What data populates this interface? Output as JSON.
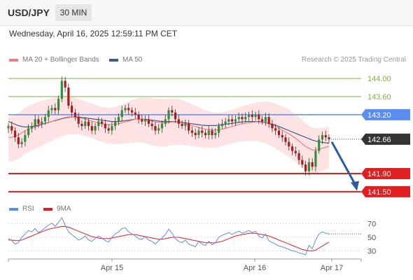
{
  "header": {
    "symbol": "USD/JPY",
    "timeframe": "30 MIN",
    "timestamp": "Wednesday, April 16, 2025 12:59:11 PM CET"
  },
  "legend": {
    "ma20_label": "MA 20 + Bollinger Bands",
    "ma50_label": "MA 50",
    "credit": "Research © 2025 Trading Central"
  },
  "rsi_legend": {
    "rsi_label": "RSI",
    "ma_label": "9MA"
  },
  "colors": {
    "ma20": "#f08080",
    "ma50": "#3a5a8c",
    "bollinger_fill": "#fde3e3",
    "candle_up": "#2f8f3a",
    "candle_down": "#b01919",
    "target_green": "#7cb342",
    "pivot_blue": "#5b8cf0",
    "support_red": "#e02020",
    "rsi_line": "#5b8cf0",
    "rsi_ma": "#e02020",
    "arrow": "#2b5aa0"
  },
  "chart_data": [
    {
      "type": "candlestick",
      "title": "USD/JPY",
      "timeframe": "30 MIN",
      "x_tick_labels": [
        "Apr 15",
        "Apr 16",
        "Apr 17"
      ],
      "y_range": [
        141.25,
        144.25
      ],
      "levels": [
        {
          "label": "144.00",
          "value": 144.0,
          "kind": "target"
        },
        {
          "label": "143.60",
          "value": 143.6,
          "kind": "target"
        },
        {
          "label": "143.20",
          "value": 143.2,
          "kind": "pivot"
        },
        {
          "label": "142.66",
          "value": 142.66,
          "kind": "current"
        },
        {
          "label": "141.90",
          "value": 141.9,
          "kind": "support"
        },
        {
          "label": "141.50",
          "value": 141.5,
          "kind": "support"
        }
      ],
      "arrow": {
        "direction": "down",
        "from": 142.6,
        "to": 141.55
      },
      "close_series": [
        142.95,
        142.85,
        142.7,
        142.55,
        142.6,
        142.75,
        142.9,
        142.95,
        143.1,
        143.0,
        143.05,
        143.15,
        143.3,
        143.35,
        143.3,
        143.55,
        143.95,
        143.8,
        143.4,
        143.25,
        143.15,
        143.0,
        142.95,
        143.05,
        142.95,
        142.85,
        142.95,
        143.05,
        143.0,
        142.9,
        142.85,
        142.95,
        143.05,
        143.15,
        143.3,
        143.35,
        143.3,
        143.25,
        143.2,
        143.1,
        143.05,
        143.1,
        143.0,
        142.95,
        142.85,
        142.9,
        143.0,
        143.1,
        143.3,
        143.25,
        143.1,
        143.0,
        142.95,
        143.0,
        142.85,
        142.8,
        142.75,
        142.85,
        142.8,
        142.75,
        142.85,
        142.75,
        142.8,
        142.95,
        143.0,
        143.05,
        143.1,
        143.05,
        143.1,
        143.15,
        143.1,
        143.15,
        143.2,
        143.15,
        143.2,
        143.1,
        143.05,
        143.15,
        143.0,
        142.9,
        142.85,
        142.75,
        142.7,
        142.6,
        142.5,
        142.4,
        142.35,
        142.2,
        142.1,
        141.95,
        142.15,
        142.05,
        142.4,
        142.65,
        142.75,
        142.7,
        142.66
      ],
      "ma20_series": [
        142.7,
        142.7,
        142.72,
        142.75,
        142.8,
        142.85,
        142.88,
        142.9,
        142.93,
        142.95,
        142.98,
        143.0,
        143.02,
        143.05,
        143.08,
        143.1,
        143.12,
        143.14,
        143.15,
        143.15,
        143.14,
        143.13,
        143.12,
        143.1,
        143.08,
        143.06,
        143.04,
        143.02,
        143.0,
        142.99,
        142.98,
        142.98,
        142.99,
        143.0,
        143.02,
        143.04,
        143.06,
        143.08,
        143.1,
        143.1,
        143.1,
        143.09,
        143.08,
        143.06,
        143.04,
        143.03,
        143.02,
        143.02,
        143.03,
        143.04,
        143.04,
        143.03,
        143.02,
        143.0,
        142.98,
        142.96,
        142.94,
        142.92,
        142.9,
        142.88,
        142.87,
        142.86,
        142.86,
        142.87,
        142.88,
        142.9,
        142.92,
        142.94,
        142.96,
        142.98,
        143.0,
        143.01,
        143.02,
        143.03,
        143.04,
        143.04,
        143.03,
        143.02,
        143.0,
        142.97,
        142.94,
        142.9,
        142.86,
        142.82,
        142.78,
        142.73,
        142.68,
        142.62,
        142.56,
        142.5,
        142.46,
        142.42,
        142.42,
        142.44,
        142.46,
        142.48,
        142.5
      ],
      "ma50_series": [
        143.05,
        143.02,
        142.99,
        142.96,
        142.94,
        142.93,
        142.93,
        142.94,
        142.95,
        142.97,
        142.99,
        143.01,
        143.03,
        143.05,
        143.07,
        143.09,
        143.11,
        143.13,
        143.14,
        143.15,
        143.15,
        143.15,
        143.14,
        143.13,
        143.12,
        143.11,
        143.1,
        143.09,
        143.08,
        143.07,
        143.06,
        143.05,
        143.05,
        143.05,
        143.06,
        143.07,
        143.08,
        143.09,
        143.1,
        143.1,
        143.1,
        143.1,
        143.09,
        143.08,
        143.07,
        143.06,
        143.05,
        143.05,
        143.05,
        143.05,
        143.05,
        143.04,
        143.03,
        143.02,
        143.01,
        143.0,
        142.99,
        142.98,
        142.97,
        142.96,
        142.96,
        142.96,
        142.96,
        142.97,
        142.98,
        142.99,
        143.0,
        143.01,
        143.02,
        143.03,
        143.04,
        143.05,
        143.05,
        143.05,
        143.05,
        143.05,
        143.04,
        143.03,
        143.01,
        142.99,
        142.97,
        142.94,
        142.91,
        142.88,
        142.85,
        142.82,
        142.79,
        142.76,
        142.73,
        142.7,
        142.67,
        142.64,
        142.62,
        142.6,
        142.59,
        142.58,
        142.57
      ]
    },
    {
      "type": "line",
      "title": "RSI",
      "y_ticks": [
        70,
        50,
        30
      ],
      "y_range": [
        20,
        80
      ],
      "series": [
        {
          "name": "RSI",
          "values": [
            48,
            45,
            40,
            42,
            50,
            55,
            60,
            58,
            63,
            57,
            60,
            64,
            68,
            71,
            66,
            72,
            79,
            68,
            58,
            54,
            50,
            46,
            48,
            52,
            46,
            44,
            48,
            52,
            49,
            45,
            43,
            50,
            55,
            58,
            63,
            64,
            58,
            55,
            52,
            48,
            47,
            51,
            46,
            44,
            40,
            45,
            49,
            54,
            62,
            56,
            48,
            44,
            42,
            46,
            40,
            38,
            36,
            44,
            40,
            38,
            44,
            39,
            42,
            50,
            53,
            55,
            57,
            54,
            57,
            59,
            56,
            58,
            60,
            57,
            59,
            52,
            49,
            55,
            45,
            42,
            40,
            37,
            36,
            34,
            32,
            30,
            29,
            27,
            26,
            24,
            38,
            33,
            46,
            55,
            58,
            56,
            55
          ]
        },
        {
          "name": "9MA",
          "values": [
            46,
            46,
            45,
            45,
            46,
            48,
            50,
            52,
            54,
            56,
            58,
            60,
            62,
            63,
            64,
            65,
            66,
            66,
            65,
            63,
            61,
            59,
            57,
            55,
            53,
            51,
            50,
            49,
            48,
            48,
            48,
            49,
            50,
            51,
            52,
            53,
            54,
            54,
            54,
            53,
            52,
            51,
            50,
            49,
            48,
            47,
            47,
            48,
            49,
            50,
            50,
            50,
            49,
            48,
            47,
            46,
            45,
            44,
            43,
            42,
            42,
            42,
            42,
            43,
            44,
            46,
            48,
            50,
            52,
            53,
            54,
            55,
            56,
            56,
            56,
            55,
            54,
            53,
            52,
            50,
            48,
            46,
            44,
            42,
            40,
            38,
            36,
            34,
            32,
            31,
            30,
            30,
            31,
            34,
            37,
            40,
            43
          ]
        }
      ]
    }
  ]
}
